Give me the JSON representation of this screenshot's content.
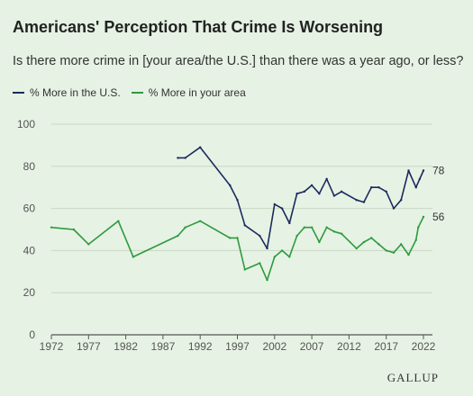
{
  "chart_data": {
    "type": "line",
    "title": "Americans' Perception That Crime Is Worsening",
    "subtitle": "Is there more crime in [your area/the U.S.] than there was a year ago, or less?",
    "xlim": [
      1972,
      2022
    ],
    "ylim": [
      0,
      100
    ],
    "x_ticks": [
      1972,
      1977,
      1982,
      1987,
      1992,
      1997,
      2002,
      2007,
      2012,
      2017,
      2022
    ],
    "y_ticks": [
      0,
      20,
      40,
      60,
      80,
      100
    ],
    "grid": "horizontal",
    "legend_position": "top-left",
    "series": [
      {
        "name": "% More in the U.S.",
        "color": "#1c2a5c",
        "end_label": "78",
        "points": [
          [
            1989,
            84
          ],
          [
            1990,
            84
          ],
          [
            1992,
            89
          ],
          [
            1996,
            71
          ],
          [
            1997,
            64
          ],
          [
            1998,
            52
          ],
          [
            2000,
            47
          ],
          [
            2001,
            41
          ],
          [
            2002,
            62
          ],
          [
            2003,
            60
          ],
          [
            2004,
            53
          ],
          [
            2005,
            67
          ],
          [
            2006,
            68
          ],
          [
            2007,
            71
          ],
          [
            2008,
            67
          ],
          [
            2009,
            74
          ],
          [
            2010,
            66
          ],
          [
            2011,
            68
          ],
          [
            2013,
            64
          ],
          [
            2014,
            63
          ],
          [
            2015,
            70
          ],
          [
            2016,
            70
          ],
          [
            2017,
            68
          ],
          [
            2018,
            60
          ],
          [
            2019,
            64
          ],
          [
            2020,
            78
          ],
          [
            2021,
            70
          ],
          [
            2021.5,
            74
          ],
          [
            2022,
            78
          ]
        ]
      },
      {
        "name": "% More in your area",
        "color": "#2e9a3e",
        "end_label": "56",
        "points": [
          [
            1972,
            51
          ],
          [
            1975,
            50
          ],
          [
            1977,
            43
          ],
          [
            1981,
            54
          ],
          [
            1983,
            37
          ],
          [
            1989,
            47
          ],
          [
            1990,
            51
          ],
          [
            1992,
            54
          ],
          [
            1996,
            46
          ],
          [
            1997,
            46
          ],
          [
            1998,
            31
          ],
          [
            2000,
            34
          ],
          [
            2001,
            26
          ],
          [
            2002,
            37
          ],
          [
            2003,
            40
          ],
          [
            2004,
            37
          ],
          [
            2005,
            47
          ],
          [
            2006,
            51
          ],
          [
            2007,
            51
          ],
          [
            2008,
            44
          ],
          [
            2009,
            51
          ],
          [
            2010,
            49
          ],
          [
            2011,
            48
          ],
          [
            2013,
            41
          ],
          [
            2014,
            44
          ],
          [
            2015,
            46
          ],
          [
            2016,
            43
          ],
          [
            2017,
            40
          ],
          [
            2018,
            39
          ],
          [
            2019,
            43
          ],
          [
            2020,
            38
          ],
          [
            2021,
            45
          ],
          [
            2021.3,
            51
          ],
          [
            2022,
            56
          ]
        ]
      }
    ]
  },
  "branding": {
    "logo_text": "GALLUP"
  }
}
